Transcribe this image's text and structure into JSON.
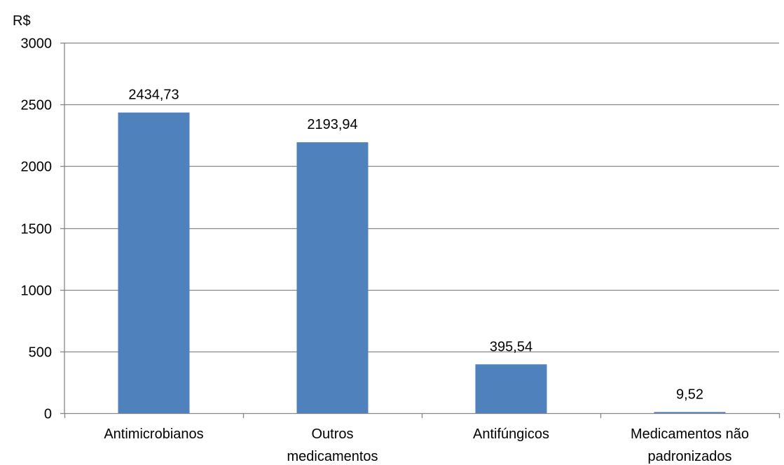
{
  "chart_data": {
    "type": "bar",
    "ylabel": "R$",
    "categories": [
      [
        "Antimicrobianos"
      ],
      [
        "Outros",
        "medicamentos"
      ],
      [
        "Antifúngicos"
      ],
      [
        "Medicamentos não",
        "padronizados"
      ]
    ],
    "values": [
      2434.73,
      2193.94,
      395.54,
      9.52
    ],
    "data_labels": [
      "2434,73",
      "2193,94",
      "395,54",
      "9,52"
    ],
    "ylim": [
      0,
      3000
    ],
    "yticks": [
      0,
      500,
      1000,
      1500,
      2000,
      2500,
      3000
    ],
    "grid": true,
    "legend": "none",
    "bar_color": "#4f81bd",
    "grid_color": "#868686"
  }
}
